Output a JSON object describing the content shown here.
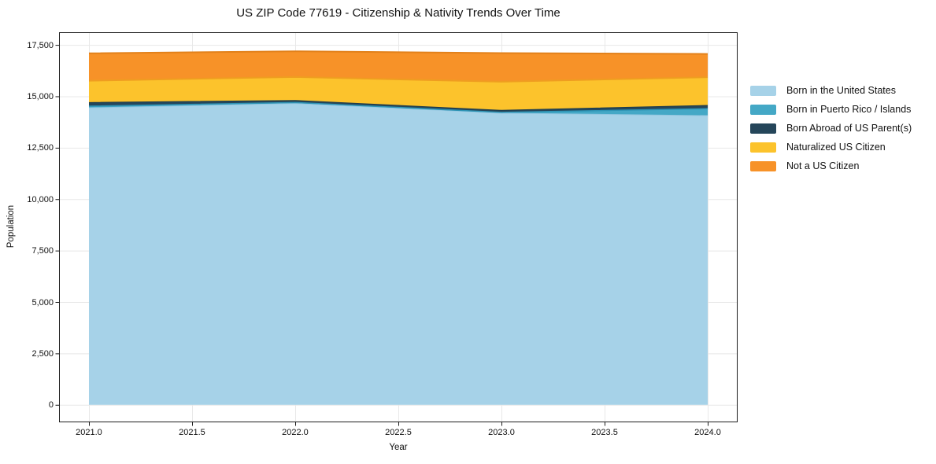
{
  "chart_data": {
    "type": "area",
    "stacked": true,
    "title": "US ZIP Code 77619 - Citizenship & Nativity Trends Over Time",
    "xlabel": "Year",
    "ylabel": "Population",
    "x": [
      2021,
      2022,
      2023,
      2024
    ],
    "series": [
      {
        "name": "Born in the United States",
        "values": [
          14440,
          14650,
          14180,
          14060
        ],
        "color": "#a6d2e8",
        "edge_color": "#93c6e0",
        "edge_width": 1
      },
      {
        "name": "Born in Puerto Rico / Islands",
        "values": [
          80,
          50,
          40,
          340
        ],
        "color": "#44a8c6",
        "edge_color": "#2e94b5",
        "edge_width": 1.5
      },
      {
        "name": "Born Abroad of US Parent(s)",
        "values": [
          180,
          100,
          100,
          160
        ],
        "color": "#25465a",
        "edge_color": "#1e3c4c",
        "edge_width": 1
      },
      {
        "name": "Naturalized US Citizen",
        "values": [
          1060,
          1140,
          1390,
          1370
        ],
        "color": "#fcc32c",
        "edge_color": "#ef9d20",
        "edge_width": 2
      },
      {
        "name": "Not a US Citizen",
        "values": [
          1330,
          1250,
          1390,
          1130
        ],
        "color": "#f79228",
        "edge_color": "#e2811b",
        "edge_width": 2
      }
    ],
    "xticks": [
      2021.0,
      2021.5,
      2022.0,
      2022.5,
      2023.0,
      2023.5,
      2024.0
    ],
    "xtick_labels": [
      "2021.0",
      "2021.5",
      "2022.0",
      "2022.5",
      "2023.0",
      "2023.5",
      "2024.0"
    ],
    "yticks": [
      0,
      2500,
      5000,
      7500,
      10000,
      12500,
      15000,
      17500
    ],
    "ytick_labels": [
      "0",
      "2,500",
      "5,000",
      "7,500",
      "10,000",
      "12,500",
      "15,000",
      "17,500"
    ],
    "xlim": [
      2020.855,
      2024.145
    ],
    "ylim": [
      -850,
      18115
    ],
    "grid": true,
    "legend_position": "right-outside"
  },
  "colors": {
    "grid": "#e8e8e8",
    "spine": "#1c1c1c",
    "text": "#111111",
    "background": "#ffffff"
  }
}
